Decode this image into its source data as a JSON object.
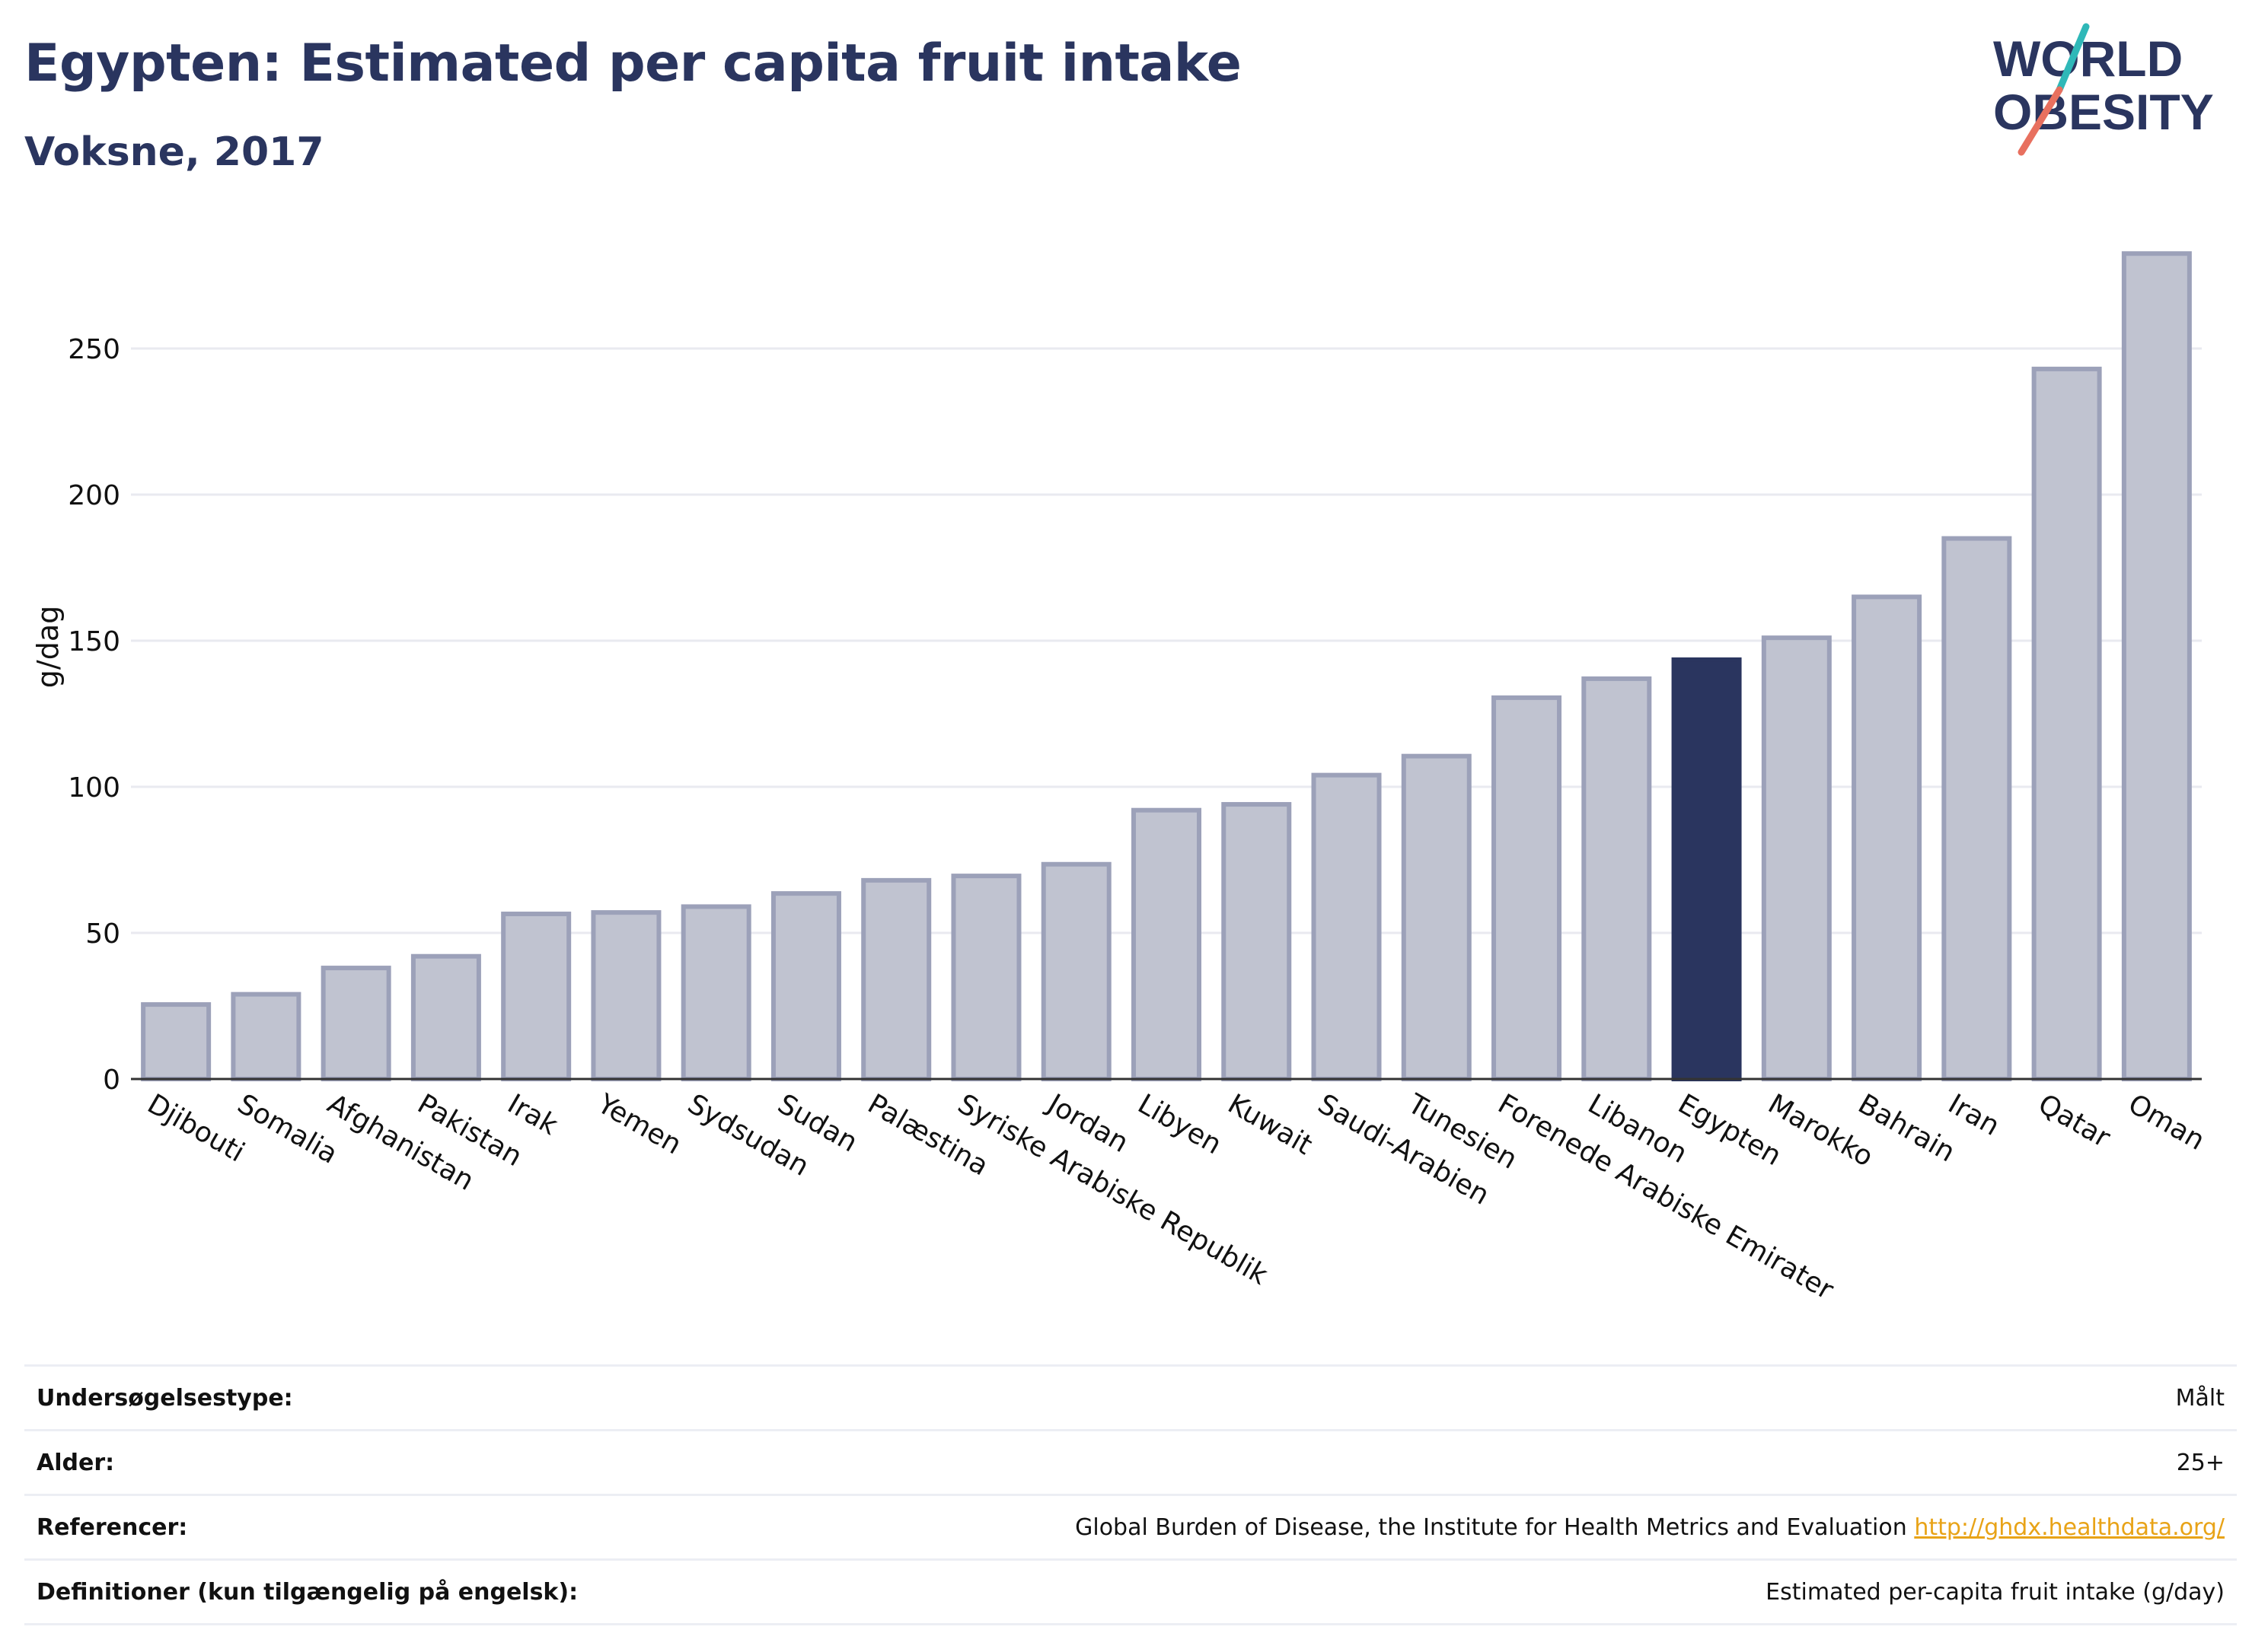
{
  "header": {
    "title": "Egypten: Estimated per capita fruit intake",
    "subtitle": "Voksne, 2017"
  },
  "logo": {
    "line1": "WORLD",
    "line2": "OBESITY"
  },
  "colors": {
    "highlight": "#2a355f",
    "bar_fill": "#c0c3d0",
    "bar_stroke": "#9ca1b9",
    "grid": "#e9eaf0",
    "logo_teal": "#2fb8b8",
    "logo_coral": "#e8705f"
  },
  "chart_data": {
    "type": "bar",
    "title": "Egypten: Estimated per capita fruit intake",
    "subtitle": "Voksne, 2017",
    "ylabel": "g/dag",
    "xlabel": "",
    "ylim": [
      0,
      290
    ],
    "yticks": [
      0,
      50,
      100,
      150,
      200,
      250
    ],
    "grid": true,
    "highlight": "Egypten",
    "categories": [
      "Djibouti",
      "Somalia",
      "Afghanistan",
      "Pakistan",
      "Irak",
      "Yemen",
      "Sydsudan",
      "Sudan",
      "Palæstina",
      "Syriske Arabiske Republik",
      "Jordan",
      "Libyen",
      "Kuwait",
      "Saudi-Arabien",
      "Tunesien",
      "Forenede Arabiske Emirater",
      "Libanon",
      "Egypten",
      "Marokko",
      "Bahrain",
      "Iran",
      "Qatar",
      "Oman"
    ],
    "values": [
      25.5,
      29,
      38,
      42,
      56.5,
      57,
      59,
      63.5,
      68,
      69.5,
      73.5,
      92,
      94,
      104,
      110.5,
      130.5,
      137,
      143.5,
      151,
      165,
      185,
      243,
      282.5
    ]
  },
  "meta": [
    {
      "label": "Undersøgelsestype:",
      "value": "Målt"
    },
    {
      "label": "Alder:",
      "value": "25+"
    },
    {
      "label": "Referencer:",
      "value": "Global Burden of Disease, the Institute for Health Metrics and Evaluation",
      "link": "http://ghdx.healthdata.org/"
    },
    {
      "label": "Definitioner (kun tilgængelig på engelsk):",
      "value": "Estimated per-capita fruit intake (g/day)"
    }
  ]
}
